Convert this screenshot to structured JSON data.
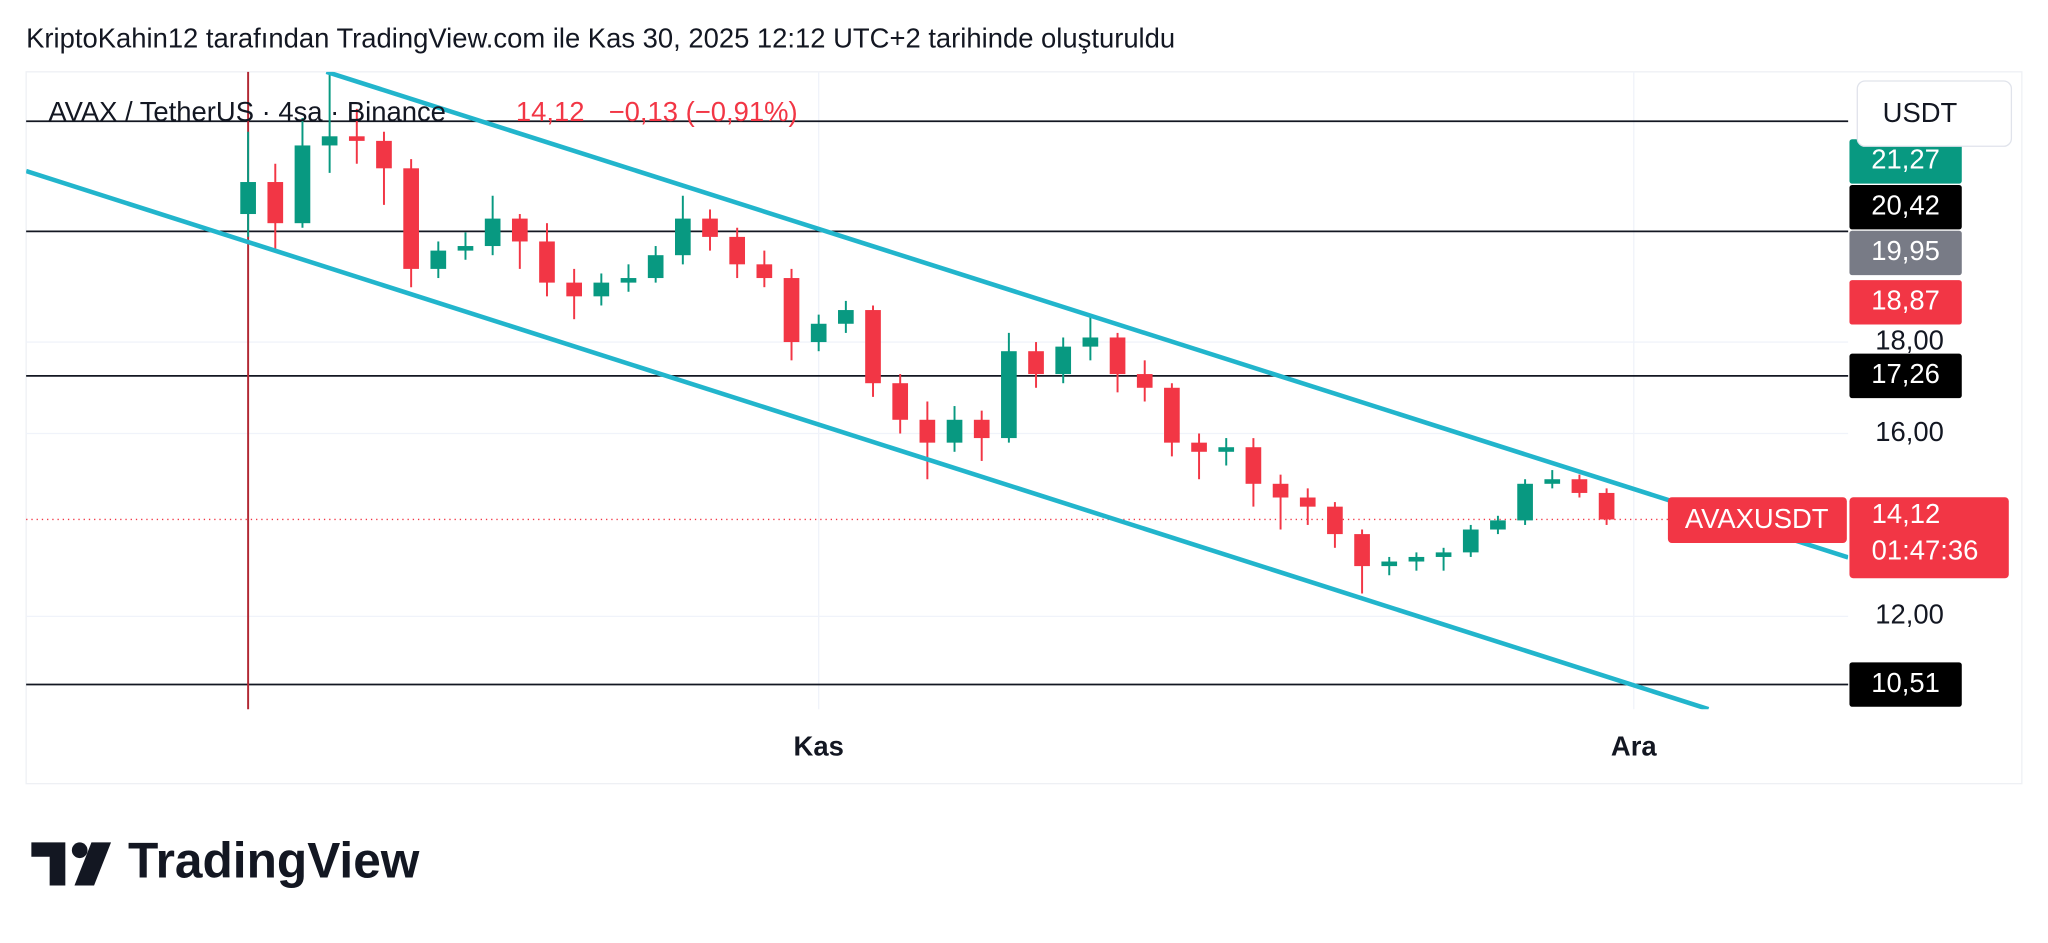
{
  "header": {
    "title": "KriptoKahin12 tarafından TradingView.com ile Kas 30, 2025 12:12 UTC+2 tarihinde oluşturuldu",
    "symbol": "AVAX / TetherUS · 4sa · Binance",
    "price": "14,12",
    "change": "−0,13 (−0,91%)",
    "currency_button": "USDT"
  },
  "chart_data": {
    "type": "candlestick",
    "x": [
      0,
      1,
      2,
      3,
      4,
      5,
      6,
      7,
      8,
      9,
      10,
      11,
      12,
      13,
      14,
      15,
      16,
      17,
      18,
      19,
      20,
      21,
      22,
      23,
      24,
      25,
      26,
      27,
      28,
      29,
      30,
      31,
      32,
      33,
      34,
      35,
      36,
      37,
      38,
      39,
      40,
      41,
      42,
      43,
      44,
      45,
      46,
      47,
      48,
      49,
      50
    ],
    "series": [
      {
        "name": "AVAXUSDT",
        "up_color": "#089981",
        "down_color": "#f23645",
        "open": [
          20.8,
          21.5,
          20.6,
          22.3,
          22.5,
          22.4,
          21.8,
          19.6,
          20.0,
          20.1,
          20.7,
          20.2,
          19.3,
          19.0,
          19.3,
          19.4,
          19.9,
          20.7,
          20.3,
          19.7,
          19.4,
          18.0,
          18.4,
          18.7,
          17.1,
          16.3,
          15.8,
          16.3,
          15.9,
          17.8,
          17.3,
          17.9,
          18.1,
          17.3,
          17.0,
          15.8,
          15.6,
          15.7,
          14.9,
          14.6,
          14.4,
          13.8,
          13.1,
          13.2,
          13.3,
          13.4,
          13.9,
          14.1,
          14.9,
          15.0,
          14.7
        ],
        "high": [
          22.6,
          21.9,
          22.9,
          23.9,
          23.1,
          22.6,
          22.0,
          20.2,
          20.4,
          21.2,
          20.8,
          20.6,
          19.6,
          19.5,
          19.7,
          20.1,
          21.2,
          20.9,
          20.5,
          20.0,
          19.6,
          18.6,
          18.9,
          18.8,
          17.3,
          16.7,
          16.6,
          16.5,
          18.2,
          18.0,
          18.1,
          18.6,
          18.2,
          17.6,
          17.1,
          16.0,
          15.9,
          15.9,
          15.1,
          14.8,
          14.5,
          13.9,
          13.3,
          13.4,
          13.5,
          14.0,
          14.2,
          15.0,
          15.2,
          15.1,
          14.8
        ],
        "low": [
          20.3,
          20.0,
          20.5,
          21.7,
          21.9,
          21.0,
          19.2,
          19.4,
          19.8,
          19.9,
          19.6,
          19.0,
          18.5,
          18.8,
          19.1,
          19.3,
          19.7,
          20.0,
          19.4,
          19.2,
          17.6,
          17.8,
          18.2,
          16.8,
          16.0,
          15.0,
          15.6,
          15.4,
          15.8,
          17.0,
          17.1,
          17.6,
          16.9,
          16.7,
          15.5,
          15.0,
          15.3,
          14.4,
          13.9,
          14.0,
          13.5,
          12.5,
          12.9,
          13.0,
          13.0,
          13.3,
          13.8,
          14.0,
          14.8,
          14.6,
          14.0
        ],
        "close": [
          21.5,
          20.6,
          22.3,
          22.5,
          22.4,
          21.8,
          19.6,
          20.0,
          20.1,
          20.7,
          20.2,
          19.3,
          19.0,
          19.3,
          19.4,
          19.9,
          20.7,
          20.3,
          19.7,
          19.4,
          18.0,
          18.4,
          18.7,
          17.1,
          16.3,
          15.8,
          16.3,
          15.9,
          17.8,
          17.3,
          17.9,
          18.1,
          17.3,
          17.0,
          15.8,
          15.6,
          15.7,
          14.9,
          14.6,
          14.4,
          13.8,
          13.1,
          13.2,
          13.3,
          13.4,
          13.9,
          14.1,
          14.9,
          15.0,
          14.7,
          14.12
        ]
      }
    ],
    "xlim": [
      -8.17,
      58.89
    ],
    "ylim": [
      9.97,
      23.91
    ],
    "xticks": [
      {
        "value": 21,
        "label": "Kas"
      },
      {
        "value": 51,
        "label": "Ara"
      }
    ],
    "yticks": [
      {
        "value": 18,
        "label": "18,00"
      },
      {
        "value": 16,
        "label": "16,00"
      },
      {
        "value": 12,
        "label": "12,00"
      }
    ],
    "grid": true,
    "hlines": [
      22.83,
      {
        "value": 20.42,
        "label": "20,42"
      },
      {
        "value": 17.26,
        "label": "17,26"
      },
      {
        "value": 10.51,
        "label": "10,51"
      }
    ],
    "price_tags": [
      {
        "value": 21.27,
        "label": "21,27",
        "color": "#089981"
      },
      {
        "value": 19.95,
        "label": "19,95",
        "color": "#787b86"
      },
      {
        "value": 18.87,
        "label": "18,87",
        "color": "#f23645"
      }
    ],
    "last_price": {
      "value": 14.12,
      "label": "14,12"
    },
    "countdown": "01:47:36",
    "last_color": "#f23645",
    "channels": [
      {
        "x": [
          2.88,
          58.89
        ],
        "y": [
          23.91,
          13.29
        ]
      },
      {
        "x": [
          -8.17,
          53.75
        ],
        "y": [
          21.74,
          9.97
        ]
      }
    ],
    "channel_color": "#22b5cc",
    "vline_x": 0,
    "vline_color": "#b22833"
  },
  "footer": {
    "logo_text": "TradingView"
  }
}
